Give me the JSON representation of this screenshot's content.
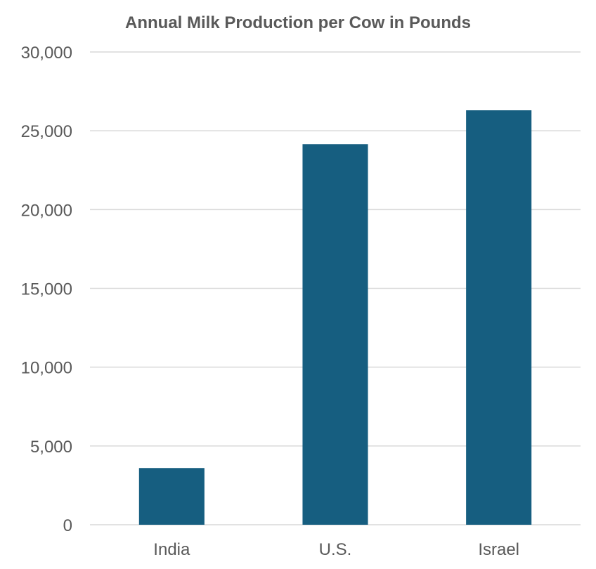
{
  "chart_data": {
    "type": "bar",
    "title": "Annual Milk Production per Cow in Pounds",
    "xlabel": "",
    "ylabel": "",
    "categories": [
      "India",
      "U.S.",
      "Israel"
    ],
    "values": [
      3600,
      24150,
      26300
    ],
    "ylim": [
      0,
      30000
    ],
    "yticks": [
      0,
      5000,
      10000,
      15000,
      20000,
      25000,
      30000
    ],
    "ytick_labels": [
      "0",
      "5,000",
      "10,000",
      "15,000",
      "20,000",
      "25,000",
      "30,000"
    ],
    "grid": "horizontal",
    "legend": "none",
    "colors": {
      "bar": "#165e80",
      "grid": "#d9d9d9",
      "text": "#595959"
    }
  }
}
